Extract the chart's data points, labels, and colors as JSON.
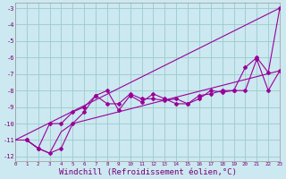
{
  "background_color": "#cce8f0",
  "grid_color": "#99cccc",
  "line_color": "#990099",
  "xlabel": "Windchill (Refroidissement éolien,°C)",
  "xlabel_fontsize": 6.5,
  "ytick_labels": [
    "-3",
    "-4",
    "-5",
    "-6",
    "-7",
    "-8",
    "-9",
    "-10",
    "-11",
    "-12"
  ],
  "ytick_vals": [
    -3,
    -4,
    -5,
    -6,
    -7,
    -8,
    -9,
    -10,
    -11,
    -12
  ],
  "xtick_vals": [
    0,
    1,
    2,
    3,
    4,
    5,
    6,
    7,
    8,
    9,
    10,
    11,
    12,
    13,
    14,
    15,
    16,
    17,
    18,
    19,
    20,
    21,
    22,
    23
  ],
  "xlim": [
    0,
    23
  ],
  "ylim": [
    -12.3,
    -2.7
  ],
  "lines": [
    {
      "x": [
        0,
        23
      ],
      "y": [
        -11.0,
        -3.0
      ],
      "marker": null,
      "markersize": 0
    },
    {
      "x": [
        1,
        2,
        3,
        4,
        5,
        6,
        7,
        8,
        9,
        10,
        11,
        12,
        13,
        14,
        15,
        16,
        17,
        18,
        19,
        20,
        21,
        22,
        23
      ],
      "y": [
        -11.0,
        -11.5,
        -10.0,
        -10.0,
        -9.3,
        -9.0,
        -8.3,
        -8.8,
        -8.8,
        -8.2,
        -8.5,
        -8.5,
        -8.6,
        -8.5,
        -8.8,
        -8.3,
        -8.2,
        -8.0,
        -8.0,
        -8.0,
        -6.1,
        -8.0,
        -6.8
      ],
      "marker": "D",
      "markersize": 2.0
    },
    {
      "x": [
        1,
        2,
        3,
        4,
        5,
        6,
        7,
        8,
        9,
        10,
        11,
        12,
        13,
        14,
        15,
        16,
        17,
        18,
        19,
        20,
        21,
        22,
        23
      ],
      "y": [
        -11.0,
        -11.5,
        -11.8,
        -11.5,
        -10.0,
        -9.3,
        -8.3,
        -8.0,
        -9.2,
        -8.3,
        -8.7,
        -8.2,
        -8.5,
        -8.8,
        -8.8,
        -8.5,
        -8.0,
        -8.1,
        -8.0,
        -6.6,
        -6.0,
        -6.9,
        -3.0
      ],
      "marker": "D",
      "markersize": 2.0
    },
    {
      "x": [
        0,
        1,
        2,
        3,
        4,
        5,
        23
      ],
      "y": [
        -11.0,
        -11.0,
        -11.5,
        -11.8,
        -10.5,
        -10.0,
        -6.8
      ],
      "marker": null,
      "markersize": 0
    }
  ]
}
